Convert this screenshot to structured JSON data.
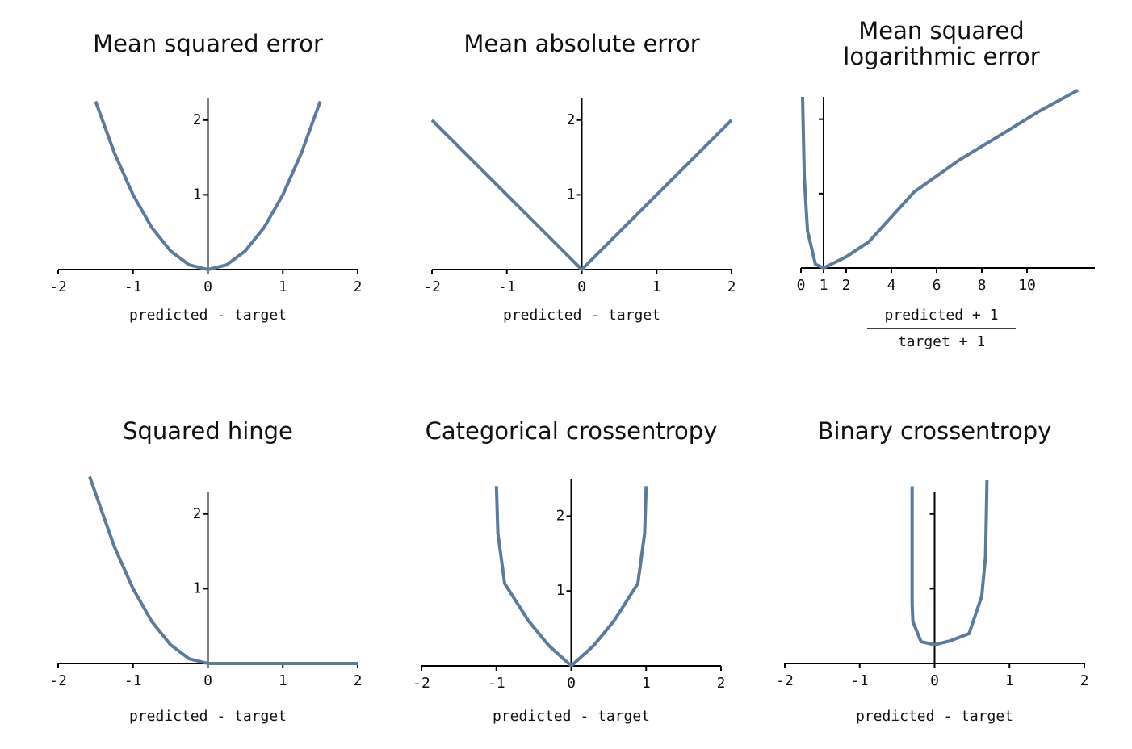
{
  "chart_data": [
    {
      "type": "line",
      "title": "Mean squared error",
      "xlabel": "predicted - target",
      "x": [
        -1.5,
        -1.25,
        -1,
        -0.75,
        -0.5,
        -0.25,
        0,
        0.25,
        0.5,
        0.75,
        1,
        1.25,
        1.5
      ],
      "values": [
        2.25,
        1.5625,
        1,
        0.5625,
        0.25,
        0.0625,
        0,
        0.0625,
        0.25,
        0.5625,
        1,
        1.5625,
        2.25
      ],
      "color": "#5b7b9c",
      "xlim": [
        -2,
        2
      ],
      "xticks": [
        -2,
        -1,
        0,
        1,
        2
      ],
      "ylim": [
        0,
        2.3
      ],
      "yticks": [
        1,
        2
      ],
      "ytick_labels": true,
      "yaxis_at": 0
    },
    {
      "type": "line",
      "title": "Mean absolute error",
      "xlabel": "predicted - target",
      "x": [
        -2,
        0,
        2
      ],
      "values": [
        2,
        0,
        2
      ],
      "color": "#5b7b9c",
      "xlim": [
        -2,
        2
      ],
      "xticks": [
        -2,
        -1,
        0,
        1,
        2
      ],
      "ylim": [
        0,
        2.3
      ],
      "yticks": [
        1,
        2
      ],
      "ytick_labels": true,
      "yaxis_at": 0
    },
    {
      "type": "line",
      "title": [
        "Mean squared",
        "logarithmic error"
      ],
      "xlabel": [
        "predicted + 1",
        "target + 1"
      ],
      "x": [
        0.07,
        0.15,
        0.29,
        0.64,
        1,
        2,
        3,
        5,
        7,
        8.9,
        10.5,
        12.25
      ],
      "values": [
        2.3,
        1.2,
        0.5,
        0.05,
        0,
        0.15,
        0.35,
        1.02,
        1.45,
        1.8,
        2.1,
        2.39
      ],
      "color": "#5b7b9c",
      "xlim": [
        0,
        13
      ],
      "xticks": [
        0,
        1,
        2,
        4,
        6,
        8,
        10
      ],
      "ylim": [
        0,
        2.3
      ],
      "yticks": [
        1,
        2
      ],
      "ytick_labels": false,
      "yaxis_at": 1
    },
    {
      "type": "line",
      "title": "Squared hinge",
      "xlabel": "predicted - target",
      "x": [
        -1.58,
        -1.25,
        -1,
        -0.75,
        -0.5,
        -0.25,
        0,
        2
      ],
      "values": [
        2.5,
        1.5625,
        1,
        0.5625,
        0.25,
        0.0625,
        0,
        0
      ],
      "color": "#5b7b9c",
      "xlim": [
        -2,
        2
      ],
      "xticks": [
        -2,
        -1,
        0,
        1,
        2
      ],
      "ylim": [
        0,
        2.3
      ],
      "yticks": [
        1,
        2
      ],
      "ytick_labels": true,
      "yaxis_at": 0
    },
    {
      "type": "line",
      "title": "Categorical crossentropy",
      "xlabel": "predicted - target",
      "x": [
        -1,
        -0.98,
        -0.89,
        -0.57,
        -0.3,
        0,
        0.3,
        0.57,
        0.89,
        0.98,
        1
      ],
      "values": [
        2.4,
        1.77,
        1.1,
        0.6,
        0.27,
        0,
        0.27,
        0.6,
        1.1,
        1.77,
        2.4
      ],
      "color": "#5b7b9c",
      "xlim": [
        -2,
        2
      ],
      "xticks": [
        -2,
        -1,
        0,
        1,
        2
      ],
      "ylim": [
        0,
        2.5
      ],
      "yticks": [
        1,
        2
      ],
      "ytick_labels": true,
      "yaxis_at": 0
    },
    {
      "type": "line",
      "title": "Binary crossentropy",
      "xlabel": "predicted - target",
      "x": [
        -0.3,
        -0.3,
        -0.29,
        -0.18,
        0,
        0.2,
        0.46,
        0.63,
        0.68,
        0.7
      ],
      "values": [
        2.37,
        0.8,
        0.56,
        0.29,
        0.25,
        0.3,
        0.4,
        0.9,
        1.43,
        2.45
      ],
      "color": "#5b7b9c",
      "xlim": [
        -2,
        2
      ],
      "xticks": [
        -2,
        -1,
        0,
        1,
        2
      ],
      "ylim": [
        0,
        2.3
      ],
      "yticks": [
        1,
        2
      ],
      "ytick_labels": false,
      "yaxis_at": 0
    }
  ]
}
